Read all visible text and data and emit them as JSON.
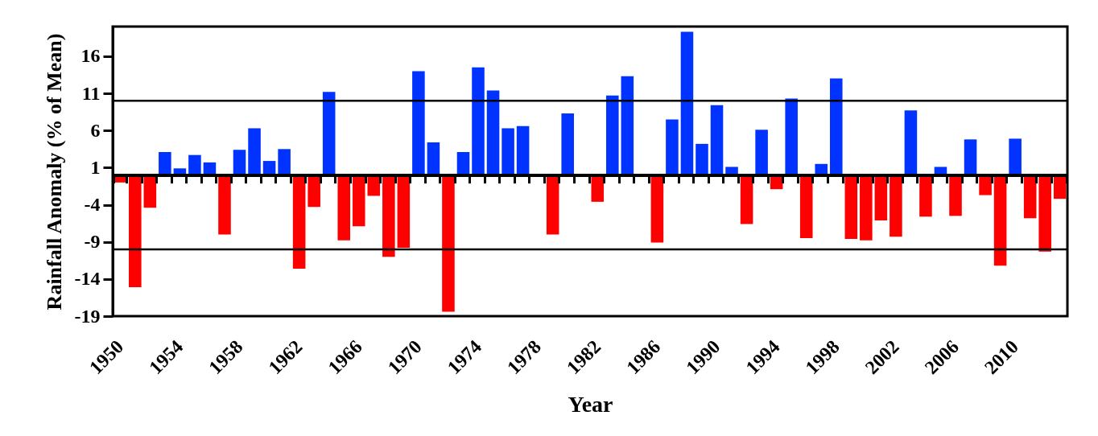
{
  "chart_data": {
    "type": "bar",
    "xlabel": "Year",
    "ylabel": "Rainfall Anomaly (% of Mean)",
    "categories": [
      "1950",
      null,
      null,
      null,
      "1954",
      null,
      null,
      null,
      "1958",
      null,
      null,
      null,
      "1962",
      null,
      null,
      null,
      "1966",
      null,
      null,
      null,
      "1970",
      null,
      null,
      null,
      "1974",
      null,
      null,
      null,
      "1978",
      null,
      null,
      null,
      "1982",
      null,
      null,
      null,
      "1986",
      null,
      null,
      null,
      "1990",
      null,
      null,
      null,
      "1994",
      null,
      null,
      null,
      "1998",
      null,
      null,
      null,
      "2002",
      null,
      null,
      null,
      "2006",
      null,
      null,
      null,
      "2010",
      null,
      null,
      null
    ],
    "values": [
      -1.0,
      -15.1,
      -4.4,
      3.1,
      0.9,
      2.7,
      1.7,
      -8.0,
      3.4,
      6.3,
      1.9,
      3.5,
      -12.6,
      -4.3,
      11.2,
      -8.8,
      -6.9,
      -2.8,
      -11.0,
      -9.8,
      14.0,
      4.4,
      -18.4,
      3.1,
      14.5,
      11.4,
      6.3,
      6.6,
      null,
      -8.0,
      8.3,
      null,
      -3.6,
      10.7,
      13.3,
      null,
      -9.1,
      7.5,
      19.3,
      4.2,
      9.4,
      1.1,
      -6.6,
      6.1,
      -1.9,
      10.3,
      -8.5,
      1.5,
      13.0,
      -8.6,
      -8.8,
      -6.1,
      -8.3,
      8.7,
      -5.6,
      1.1,
      -5.5,
      4.8,
      -2.7,
      -12.2,
      4.9,
      -5.8,
      -10.3,
      -3.2
    ],
    "colors": [
      "#ff0000",
      "#ff0000",
      "#ff0000",
      "#0033ff",
      "#0033ff",
      "#0033ff",
      "#0033ff",
      "#ff0000",
      "#0033ff",
      "#0033ff",
      "#0033ff",
      "#0033ff",
      "#ff0000",
      "#ff0000",
      "#0033ff",
      "#ff0000",
      "#ff0000",
      "#ff0000",
      "#ff0000",
      "#ff0000",
      "#0033ff",
      "#0033ff",
      "#ff0000",
      "#0033ff",
      "#0033ff",
      "#0033ff",
      "#0033ff",
      "#0033ff",
      null,
      "#ff0000",
      "#0033ff",
      null,
      "#ff0000",
      "#0033ff",
      "#0033ff",
      null,
      "#ff0000",
      "#0033ff",
      "#0033ff",
      "#0033ff",
      "#0033ff",
      "#0033ff",
      "#ff0000",
      "#0033ff",
      "#ff0000",
      "#0033ff",
      "#ff0000",
      "#0033ff",
      "#0033ff",
      "#ff0000",
      "#ff0000",
      "#ff0000",
      "#ff0000",
      "#0033ff",
      "#ff0000",
      "#0033ff",
      "#ff0000",
      "#0033ff",
      "#ff0000",
      "#ff0000",
      "#0033ff",
      "#ff0000",
      "#ff0000",
      "#ff0000"
    ],
    "ylim": [
      -19,
      20
    ],
    "yticks": [
      -19,
      -14,
      -9,
      -4,
      1,
      6,
      11,
      16
    ],
    "ref_lines": [
      {
        "axis": "y",
        "value": 10,
        "color": "#000000"
      },
      {
        "axis": "y",
        "value": -10,
        "color": "#000000"
      }
    ],
    "grid": false
  }
}
